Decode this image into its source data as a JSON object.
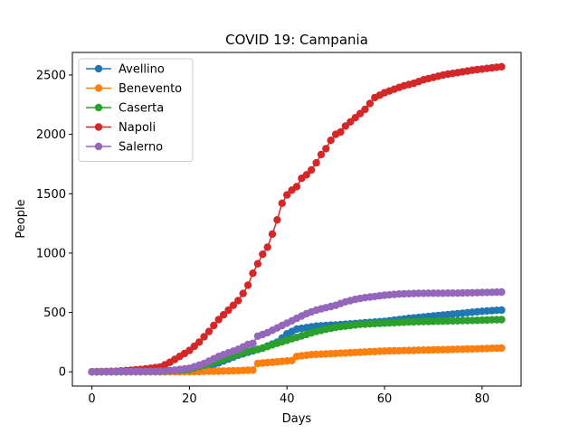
{
  "chart_data": {
    "type": "line",
    "title": "COVID 19: Campania",
    "xlabel": "Days",
    "ylabel": "People",
    "xlim": [
      -4,
      88
    ],
    "ylim": [
      -120,
      2690
    ],
    "xticks": [
      0,
      20,
      40,
      60,
      80
    ],
    "yticks": [
      0,
      500,
      1000,
      1500,
      2000,
      2500
    ],
    "grid": false,
    "legend": "top-left",
    "series": [
      {
        "name": "Avellino",
        "color": "#1f77b4",
        "anchors": [
          [
            0,
            0
          ],
          [
            14,
            0
          ],
          [
            17,
            5
          ],
          [
            20,
            20
          ],
          [
            25,
            60
          ],
          [
            30,
            140
          ],
          [
            35,
            200
          ],
          [
            38,
            250
          ],
          [
            40,
            320
          ],
          [
            42,
            360
          ],
          [
            46,
            385
          ],
          [
            50,
            395
          ],
          [
            55,
            410
          ],
          [
            60,
            425
          ],
          [
            65,
            450
          ],
          [
            70,
            470
          ],
          [
            75,
            490
          ],
          [
            80,
            510
          ],
          [
            84,
            520
          ]
        ]
      },
      {
        "name": "Benevento",
        "color": "#ff7f0e",
        "anchors": [
          [
            0,
            0
          ],
          [
            20,
            0
          ],
          [
            25,
            5
          ],
          [
            30,
            10
          ],
          [
            33,
            15
          ],
          [
            34,
            70
          ],
          [
            38,
            85
          ],
          [
            41,
            95
          ],
          [
            42,
            130
          ],
          [
            45,
            145
          ],
          [
            50,
            155
          ],
          [
            55,
            165
          ],
          [
            60,
            175
          ],
          [
            65,
            180
          ],
          [
            70,
            185
          ],
          [
            75,
            190
          ],
          [
            80,
            195
          ],
          [
            84,
            200
          ]
        ]
      },
      {
        "name": "Caserta",
        "color": "#2ca02c",
        "anchors": [
          [
            0,
            0
          ],
          [
            15,
            5
          ],
          [
            20,
            20
          ],
          [
            25,
            80
          ],
          [
            30,
            150
          ],
          [
            35,
            200
          ],
          [
            38,
            240
          ],
          [
            42,
            290
          ],
          [
            46,
            340
          ],
          [
            50,
            375
          ],
          [
            55,
            400
          ],
          [
            60,
            410
          ],
          [
            65,
            420
          ],
          [
            70,
            425
          ],
          [
            75,
            430
          ],
          [
            80,
            435
          ],
          [
            84,
            440
          ]
        ]
      },
      {
        "name": "Napoli",
        "color": "#d62728",
        "anchors": [
          [
            0,
            0
          ],
          [
            5,
            5
          ],
          [
            10,
            20
          ],
          [
            14,
            40
          ],
          [
            16,
            80
          ],
          [
            18,
            130
          ],
          [
            20,
            180
          ],
          [
            22,
            250
          ],
          [
            24,
            340
          ],
          [
            26,
            440
          ],
          [
            28,
            520
          ],
          [
            30,
            600
          ],
          [
            31,
            660
          ],
          [
            32,
            730
          ],
          [
            33,
            830
          ],
          [
            34,
            910
          ],
          [
            35,
            990
          ],
          [
            36,
            1050
          ],
          [
            37,
            1160
          ],
          [
            38,
            1280
          ],
          [
            39,
            1420
          ],
          [
            40,
            1490
          ],
          [
            41,
            1530
          ],
          [
            42,
            1560
          ],
          [
            43,
            1630
          ],
          [
            44,
            1660
          ],
          [
            45,
            1700
          ],
          [
            46,
            1760
          ],
          [
            47,
            1830
          ],
          [
            48,
            1880
          ],
          [
            49,
            1950
          ],
          [
            50,
            2000
          ],
          [
            51,
            2020
          ],
          [
            52,
            2070
          ],
          [
            54,
            2140
          ],
          [
            56,
            2210
          ],
          [
            58,
            2310
          ],
          [
            60,
            2350
          ],
          [
            62,
            2380
          ],
          [
            64,
            2410
          ],
          [
            66,
            2430
          ],
          [
            68,
            2460
          ],
          [
            70,
            2480
          ],
          [
            72,
            2500
          ],
          [
            75,
            2520
          ],
          [
            78,
            2540
          ],
          [
            80,
            2550
          ],
          [
            82,
            2560
          ],
          [
            84,
            2570
          ]
        ]
      },
      {
        "name": "Salerno",
        "color": "#9467bd",
        "anchors": [
          [
            0,
            0
          ],
          [
            15,
            5
          ],
          [
            20,
            30
          ],
          [
            23,
            70
          ],
          [
            26,
            130
          ],
          [
            30,
            190
          ],
          [
            32,
            230
          ],
          [
            33,
            240
          ],
          [
            34,
            300
          ],
          [
            36,
            330
          ],
          [
            38,
            370
          ],
          [
            40,
            410
          ],
          [
            42,
            450
          ],
          [
            44,
            490
          ],
          [
            46,
            520
          ],
          [
            48,
            540
          ],
          [
            50,
            560
          ],
          [
            52,
            590
          ],
          [
            54,
            610
          ],
          [
            56,
            625
          ],
          [
            58,
            635
          ],
          [
            60,
            645
          ],
          [
            63,
            655
          ],
          [
            66,
            660
          ],
          [
            70,
            662
          ],
          [
            75,
            663
          ],
          [
            80,
            668
          ],
          [
            84,
            672
          ]
        ]
      }
    ]
  }
}
